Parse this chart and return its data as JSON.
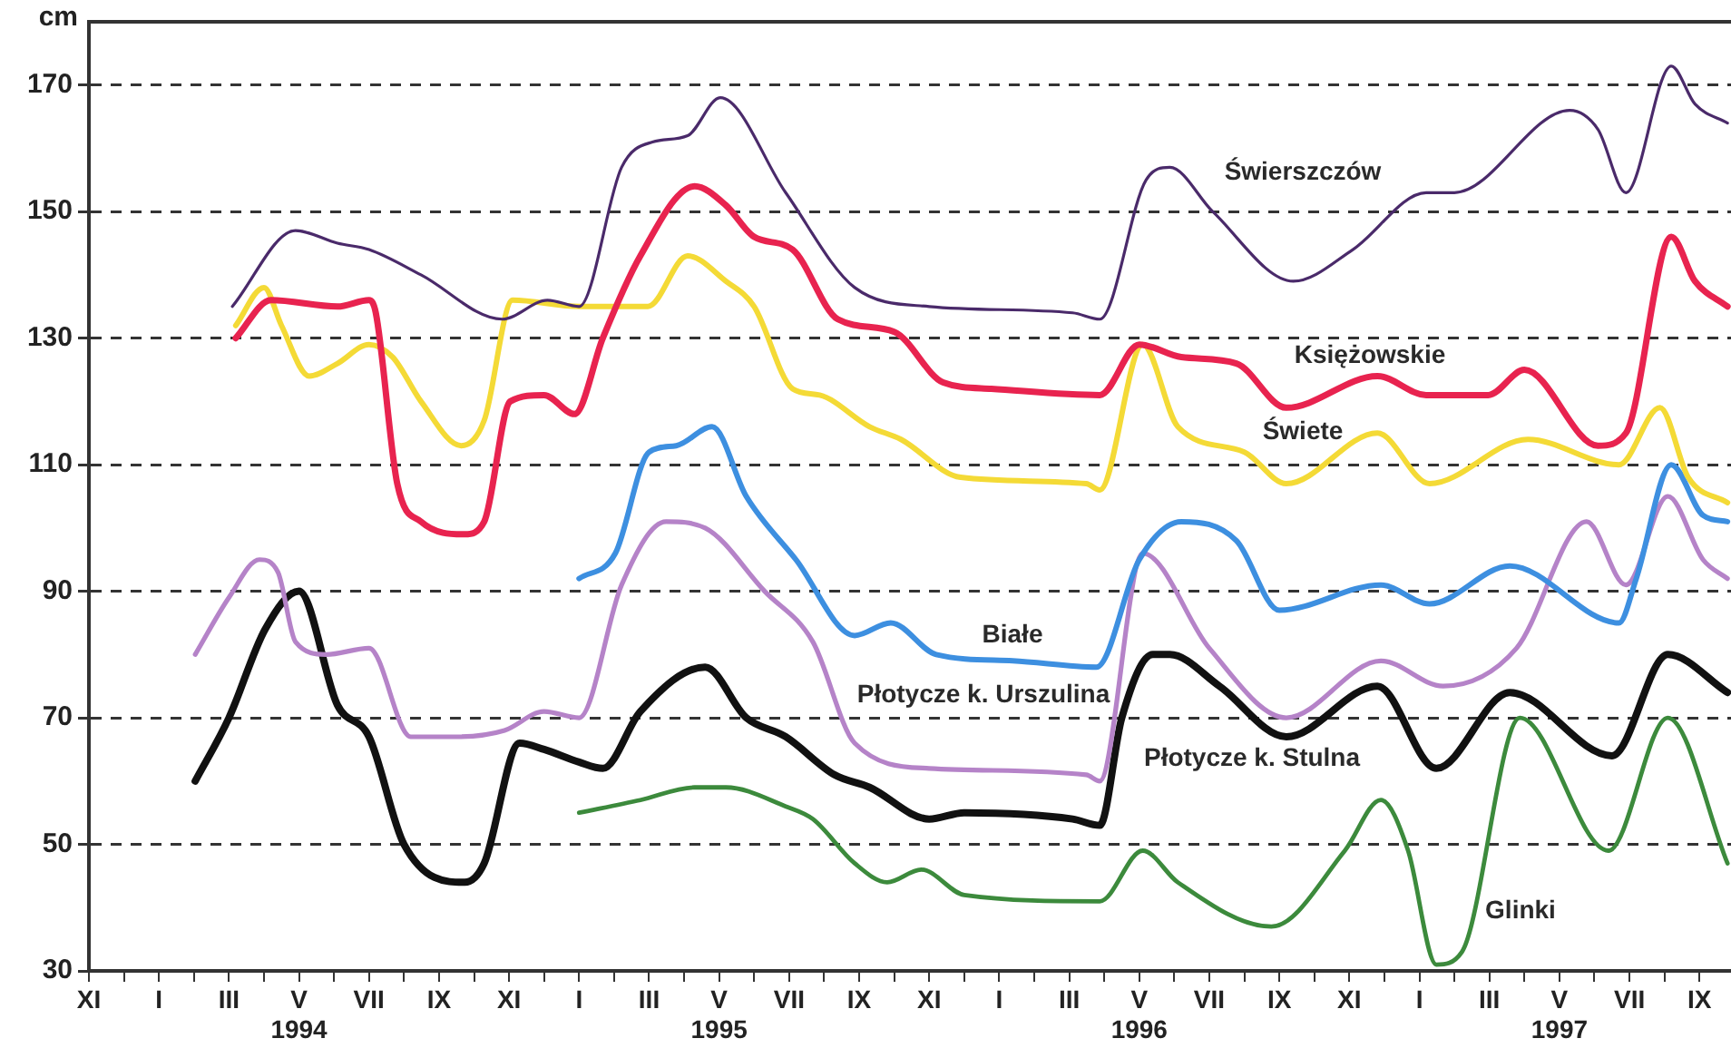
{
  "chart_data": {
    "type": "line",
    "ylabel": "cm",
    "ylim": [
      30,
      180
    ],
    "yticks": [
      30,
      50,
      70,
      90,
      110,
      130,
      150,
      170
    ],
    "xlim": [
      "1993-11",
      "1997-09-28"
    ],
    "xticks": [
      {
        "value": "1993-11",
        "label": "XI"
      },
      {
        "value": "1993-12",
        "label": null
      },
      {
        "value": "1994-01",
        "label": "I"
      },
      {
        "value": "1994-02",
        "label": null
      },
      {
        "value": "1994-03",
        "label": "III"
      },
      {
        "value": "1994-04",
        "label": null
      },
      {
        "value": "1994-05",
        "label": "V\n1994"
      },
      {
        "value": "1994-06",
        "label": null
      },
      {
        "value": "1994-07",
        "label": "VII"
      },
      {
        "value": "1994-08",
        "label": null
      },
      {
        "value": "1994-09",
        "label": "IX"
      },
      {
        "value": "1994-10",
        "label": null
      },
      {
        "value": "1994-11",
        "label": "XI"
      },
      {
        "value": "1994-12",
        "label": null
      },
      {
        "value": "1995-01",
        "label": "I"
      },
      {
        "value": "1995-02",
        "label": null
      },
      {
        "value": "1995-03",
        "label": "III"
      },
      {
        "value": "1995-04",
        "label": null
      },
      {
        "value": "1995-05",
        "label": "V\n1995"
      },
      {
        "value": "1995-06",
        "label": null
      },
      {
        "value": "1995-07",
        "label": "VII"
      },
      {
        "value": "1995-08",
        "label": null
      },
      {
        "value": "1995-09",
        "label": "IX"
      },
      {
        "value": "1995-10",
        "label": null
      },
      {
        "value": "1995-11",
        "label": "XI"
      },
      {
        "value": "1995-12",
        "label": null
      },
      {
        "value": "1996-01",
        "label": "I"
      },
      {
        "value": "1996-02",
        "label": null
      },
      {
        "value": "1996-03",
        "label": "III"
      },
      {
        "value": "1996-04",
        "label": null
      },
      {
        "value": "1996-05",
        "label": "V\n1996"
      },
      {
        "value": "1996-06",
        "label": null
      },
      {
        "value": "1996-07",
        "label": "VII"
      },
      {
        "value": "1996-08",
        "label": null
      },
      {
        "value": "1996-09",
        "label": "IX"
      },
      {
        "value": "1996-10",
        "label": null
      },
      {
        "value": "1996-11",
        "label": "XI"
      },
      {
        "value": "1996-12",
        "label": null
      },
      {
        "value": "1997-01",
        "label": "I"
      },
      {
        "value": "1997-02",
        "label": null
      },
      {
        "value": "1997-03",
        "label": "III"
      },
      {
        "value": "1997-04",
        "label": null
      },
      {
        "value": "1997-05",
        "label": "V\n1997"
      },
      {
        "value": "1997-06",
        "label": null
      },
      {
        "value": "1997-07",
        "label": "VII"
      },
      {
        "value": "1997-08",
        "label": null
      },
      {
        "value": "1997-09",
        "label": "IX"
      }
    ],
    "grid": "y",
    "legend": false,
    "marker": "none",
    "line_style": "solid",
    "series": [
      {
        "name": "Świerszczów",
        "color": "#4a2a6a",
        "x": [
          "1994-03-04",
          "1994-04-28",
          "1994-06-04",
          "1994-07-01",
          "1994-08-16",
          "1994-10-26",
          "1994-12-04",
          "1995-01-01",
          "1995-02-07",
          "1995-03-04",
          "1995-04-04",
          "1995-05-02",
          "1995-06-28",
          "1995-08-28",
          "1995-11-01",
          "1996-03-04",
          "1996-03-28",
          "1996-05-07",
          "1996-05-28",
          "1996-07-04",
          "1996-09-13",
          "1996-11-04",
          "1997-01-07",
          "1997-02-01",
          "1997-05-10",
          "1997-06-04",
          "1997-06-28",
          "1997-08-07",
          "1997-08-28",
          "1997-09-25"
        ],
        "values": [
          135,
          147,
          145,
          144,
          140,
          133,
          136,
          135,
          157,
          161,
          162,
          168,
          153,
          138,
          135,
          134,
          133,
          155,
          157,
          150,
          139,
          144,
          153,
          153,
          166,
          163,
          153,
          173,
          167,
          164
        ]
      },
      {
        "name": "Księżowskie",
        "color": "#e8234f",
        "x": [
          "1994-03-07",
          "1994-04-07",
          "1994-06-04",
          "1994-07-01",
          "1994-07-07",
          "1994-07-26",
          "1994-08-16",
          "1994-09-23",
          "1994-10-10",
          "1994-11-02",
          "1994-12-01",
          "1994-12-28",
          "1995-01-22",
          "1995-02-22",
          "1995-04-10",
          "1995-05-07",
          "1995-06-01",
          "1995-07-04",
          "1995-08-13",
          "1995-10-01",
          "1995-11-13",
          "1995-12-25",
          "1996-03-28",
          "1996-05-01",
          "1996-06-07",
          "1996-07-25",
          "1996-09-07",
          "1996-11-25",
          "1997-01-07",
          "1997-02-28",
          "1997-04-01",
          "1997-06-04",
          "1997-06-28",
          "1997-08-07",
          "1997-08-28",
          "1997-09-25"
        ],
        "values": [
          130,
          136,
          135,
          136,
          134,
          107,
          101,
          99,
          101,
          120,
          121,
          118,
          130,
          143,
          154,
          151,
          146,
          144,
          133,
          131,
          123,
          122,
          121,
          129,
          127,
          126,
          119,
          124,
          121,
          121,
          125,
          113,
          115,
          146,
          139,
          135
        ]
      },
      {
        "name": "Świete",
        "color": "#f4da36",
        "x": [
          "1994-03-07",
          "1994-04-01",
          "1994-04-16",
          "1994-05-10",
          "1994-06-04",
          "1994-07-01",
          "1994-07-22",
          "1994-08-16",
          "1994-09-20",
          "1994-10-10",
          "1994-11-04",
          "1995-01-01",
          "1995-02-28",
          "1995-04-04",
          "1995-05-07",
          "1995-06-01",
          "1995-07-04",
          "1995-07-28",
          "1995-09-10",
          "1995-10-07",
          "1995-11-28",
          "1996-03-16",
          "1996-03-28",
          "1996-05-04",
          "1996-06-04",
          "1996-08-01",
          "1996-09-07",
          "1996-11-25",
          "1997-01-10",
          "1997-04-04",
          "1997-06-22",
          "1997-07-28",
          "1997-08-22",
          "1997-09-25"
        ],
        "values": [
          132,
          138,
          132,
          124,
          126,
          129,
          127,
          120,
          113,
          117,
          136,
          135,
          135,
          143,
          139,
          135,
          122,
          121,
          116,
          114,
          108,
          107,
          106,
          129,
          116,
          112,
          107,
          115,
          107,
          114,
          110,
          119,
          108,
          104
        ]
      },
      {
        "name": "Białe",
        "color": "#3d8fe0",
        "x": [
          "1995-01-01",
          "1995-02-02",
          "1995-03-01",
          "1995-03-25",
          "1995-04-25",
          "1995-05-25",
          "1995-07-07",
          "1995-08-28",
          "1995-09-28",
          "1995-11-07",
          "1996-01-13",
          "1996-03-25",
          "1996-05-01",
          "1996-06-07",
          "1996-07-25",
          "1996-09-01",
          "1996-11-28",
          "1997-01-10",
          "1997-03-19",
          "1997-06-22",
          "1997-07-07",
          "1997-08-07",
          "1997-09-04",
          "1997-09-25"
        ],
        "values": [
          92,
          96,
          112,
          113,
          116,
          105,
          95,
          83,
          85,
          80,
          79,
          78,
          95,
          101,
          98,
          87,
          91,
          88,
          94,
          85,
          92,
          110,
          102,
          101
        ]
      },
      {
        "name": "Płotycze k. Urszulina",
        "color": "#b583c8",
        "x": [
          "1994-02-02",
          "1994-03-01",
          "1994-03-28",
          "1994-04-13",
          "1994-04-28",
          "1994-05-25",
          "1994-07-01",
          "1994-08-07",
          "1994-09-16",
          "1994-10-28",
          "1994-12-01",
          "1995-01-01",
          "1995-02-07",
          "1995-03-16",
          "1995-04-19",
          "1995-06-10",
          "1995-07-22",
          "1995-08-28",
          "1995-11-01",
          "1996-03-16",
          "1996-03-28",
          "1996-05-04",
          "1996-07-01",
          "1996-09-07",
          "1996-11-28",
          "1997-01-22",
          "1997-03-25",
          "1997-05-25",
          "1997-06-28",
          "1997-08-04",
          "1997-09-04",
          "1997-09-25"
        ],
        "values": [
          80,
          89,
          95,
          93,
          82,
          80,
          81,
          67,
          67,
          68,
          71,
          70,
          91,
          101,
          100,
          90,
          82,
          66,
          62,
          61,
          60,
          96,
          81,
          70,
          79,
          75,
          81,
          101,
          91,
          105,
          95,
          92
        ]
      },
      {
        "name": "Płotycze k. Stulna",
        "color": "#111111",
        "x": [
          "1994-02-02",
          "1994-03-01",
          "1994-04-02",
          "1994-05-01",
          "1994-06-04",
          "1994-07-01",
          "1994-08-01",
          "1994-09-23",
          "1994-10-10",
          "1994-11-10",
          "1994-12-01",
          "1995-01-01",
          "1995-01-22",
          "1995-02-22",
          "1995-04-19",
          "1995-05-25",
          "1995-06-28",
          "1995-08-10",
          "1995-09-10",
          "1995-11-01",
          "1995-12-01",
          "1996-03-04",
          "1996-03-28",
          "1996-04-16",
          "1996-05-13",
          "1996-05-28",
          "1996-07-10",
          "1996-09-07",
          "1996-11-25",
          "1997-01-16",
          "1997-03-19",
          "1997-06-16",
          "1997-08-04",
          "1997-09-25"
        ],
        "values": [
          60,
          70,
          84,
          90,
          72,
          67,
          50,
          44,
          47,
          66,
          65,
          63,
          62,
          71,
          78,
          70,
          67,
          61,
          59,
          54,
          55,
          54,
          53,
          70,
          80,
          80,
          75,
          67,
          75,
          62,
          74,
          64,
          80,
          74
        ]
      },
      {
        "name": "Glinki",
        "color": "#3c8a3c",
        "x": [
          "1995-01-01",
          "1995-02-22",
          "1995-04-10",
          "1995-05-07",
          "1995-06-28",
          "1995-07-22",
          "1995-08-28",
          "1995-09-25",
          "1995-10-25",
          "1995-12-01",
          "1996-03-28",
          "1996-05-04",
          "1996-06-04",
          "1996-08-25",
          "1996-10-28",
          "1996-11-28",
          "1996-12-22",
          "1997-01-16",
          "1997-02-07",
          "1997-03-28",
          "1997-06-13",
          "1997-08-04",
          "1997-09-25"
        ],
        "values": [
          55,
          57,
          59,
          59,
          56,
          54,
          47,
          44,
          46,
          42,
          41,
          49,
          44,
          37,
          49,
          57,
          49,
          31,
          33,
          70,
          49,
          70,
          47
        ]
      }
    ]
  }
}
